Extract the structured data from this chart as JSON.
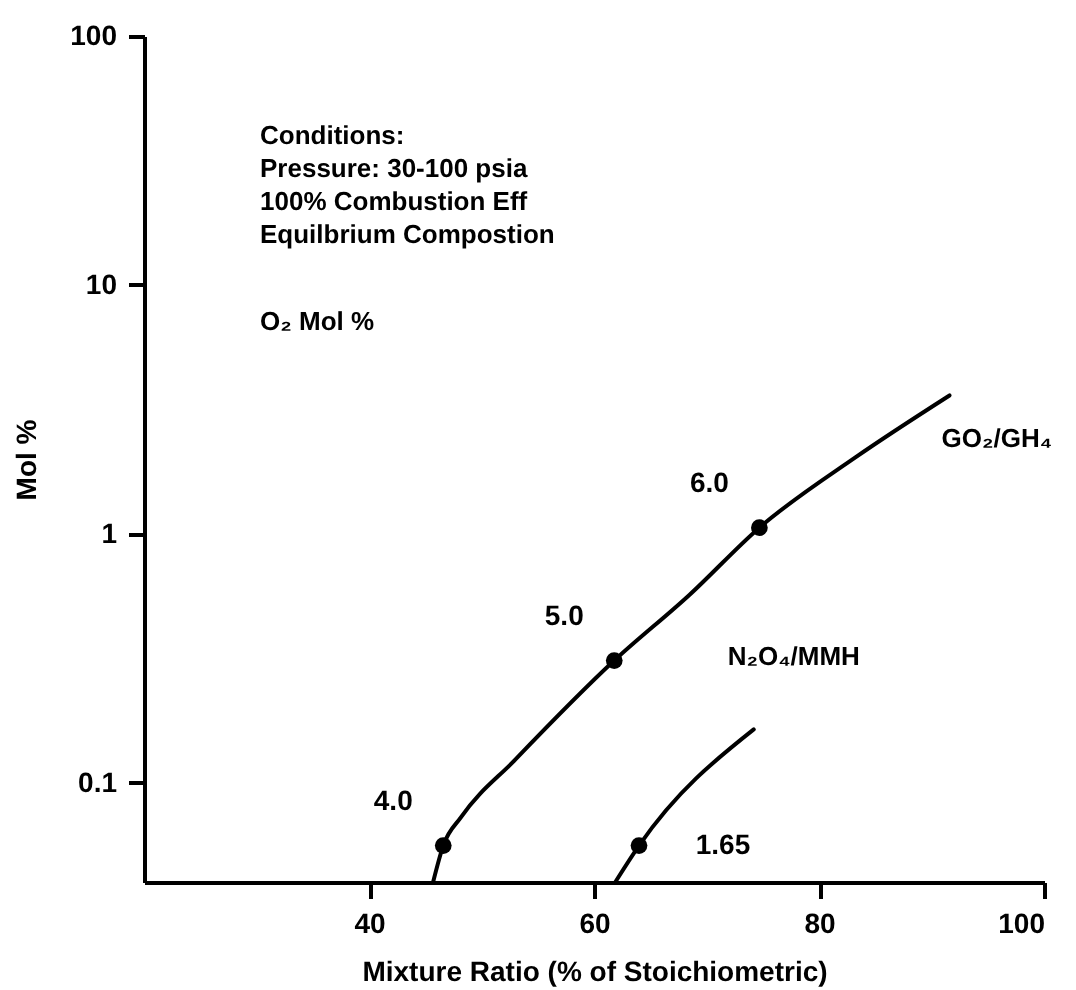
{
  "chart_data": {
    "type": "line",
    "xlabel": "Mixture Ratio (% of Stoichiometric)",
    "ylabel": "Mol %",
    "xlim": [
      20,
      100
    ],
    "xticks": [
      40,
      60,
      80,
      100
    ],
    "ylim": [
      0.04,
      100
    ],
    "yticks": [
      0.1,
      1,
      10,
      100
    ],
    "log": "y",
    "grid": false,
    "legend": false,
    "marker": "none",
    "line_style": "solid",
    "annotations": [
      "Conditions:",
      "Pressure: 30-100 psia",
      "100% Combustion Eff",
      "Equilbrium Compostion",
      "O₂ Mol %",
      {
        "text": "4.0",
        "x": 46.6,
        "y": 0.056
      },
      {
        "text": "5.0",
        "x": 61.8,
        "y": 0.31
      },
      {
        "text": "6.0",
        "x": 74.7,
        "y": 1.06
      },
      {
        "text": "1.65",
        "x": 64,
        "y": 0.056
      }
    ],
    "series": [
      {
        "name": "GO₂/GH₄",
        "color": "#000000",
        "x": [
          45.7,
          46.6,
          48.2,
          53,
          61.8,
          68.5,
          74.7,
          83.3,
          91.6
        ],
        "values": [
          0.04,
          0.056,
          0.073,
          0.124,
          0.31,
          0.57,
          1.06,
          2.04,
          3.6
        ]
      },
      {
        "name": "N₂O₄/MMH",
        "color": "#000000",
        "x": [
          61.9,
          64,
          74.2
        ],
        "values": [
          0.04,
          0.056,
          0.164
        ]
      },
      {
        "type": "scatter",
        "marker": "circle",
        "color": "#000000",
        "x": [
          46.6,
          61.8,
          74.7
        ],
        "values": [
          0.056,
          0.31,
          1.06
        ]
      },
      {
        "type": "scatter",
        "marker": "circle",
        "color": "#000000",
        "x": [
          64
        ],
        "values": [
          0.056
        ]
      }
    ]
  }
}
